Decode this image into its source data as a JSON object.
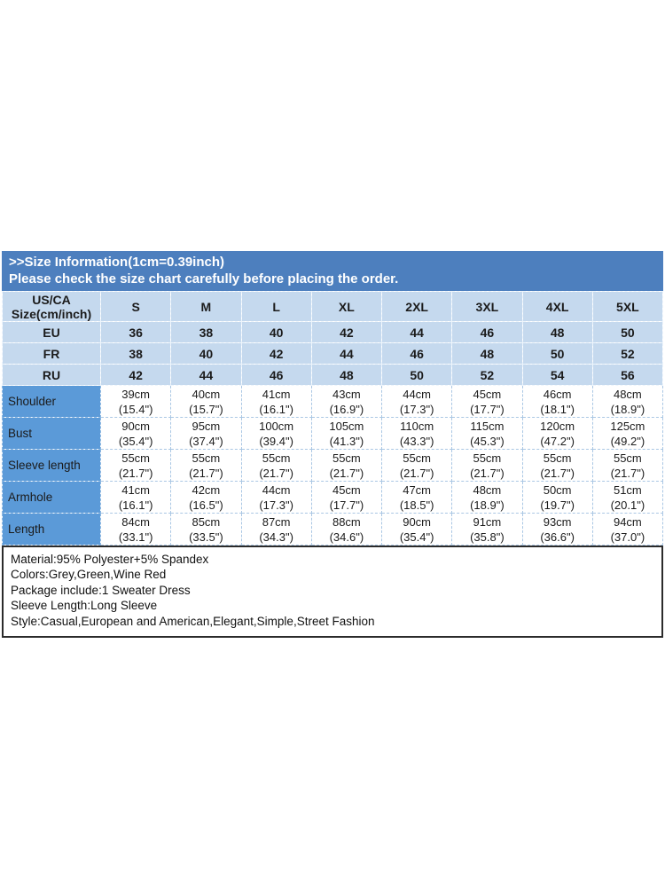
{
  "banner": {
    "line1": ">>Size Information(1cm=0.39inch)",
    "line2": "Please check the size chart carefully before placing the order."
  },
  "table": {
    "corner_header_line1": "US/CA",
    "corner_header_line2": "Size(cm/inch)",
    "size_columns": [
      "S",
      "M",
      "L",
      "XL",
      "2XL",
      "3XL",
      "4XL",
      "5XL"
    ],
    "size_rows": [
      {
        "label": "EU",
        "values": [
          "36",
          "38",
          "40",
          "42",
          "44",
          "46",
          "48",
          "50"
        ]
      },
      {
        "label": "FR",
        "values": [
          "38",
          "40",
          "42",
          "44",
          "46",
          "48",
          "50",
          "52"
        ]
      },
      {
        "label": "RU",
        "values": [
          "42",
          "44",
          "46",
          "48",
          "50",
          "52",
          "54",
          "56"
        ]
      }
    ],
    "measurement_rows": [
      {
        "label": "Shoulder",
        "values_cm": [
          "39cm",
          "40cm",
          "41cm",
          "43cm",
          "44cm",
          "45cm",
          "46cm",
          "48cm"
        ],
        "values_in": [
          "(15.4\")",
          "(15.7\")",
          "(16.1\")",
          "(16.9\")",
          "(17.3\")",
          "(17.7\")",
          "(18.1\")",
          "(18.9\")"
        ]
      },
      {
        "label": "Bust",
        "values_cm": [
          "90cm",
          "95cm",
          "100cm",
          "105cm",
          "110cm",
          "115cm",
          "120cm",
          "125cm"
        ],
        "values_in": [
          "(35.4\")",
          "(37.4\")",
          "(39.4\")",
          "(41.3\")",
          "(43.3\")",
          "(45.3\")",
          "(47.2\")",
          "(49.2\")"
        ]
      },
      {
        "label": "Sleeve length",
        "values_cm": [
          "55cm",
          "55cm",
          "55cm",
          "55cm",
          "55cm",
          "55cm",
          "55cm",
          "55cm"
        ],
        "values_in": [
          "(21.7\")",
          "(21.7\")",
          "(21.7\")",
          "(21.7\")",
          "(21.7\")",
          "(21.7\")",
          "(21.7\")",
          "(21.7\")"
        ]
      },
      {
        "label": "Armhole",
        "values_cm": [
          "41cm",
          "42cm",
          "44cm",
          "45cm",
          "47cm",
          "48cm",
          "50cm",
          "51cm"
        ],
        "values_in": [
          "(16.1\")",
          "(16.5\")",
          "(17.3\")",
          "(17.7\")",
          "(18.5\")",
          "(18.9\")",
          "(19.7\")",
          "(20.1\")"
        ]
      },
      {
        "label": "Length",
        "values_cm": [
          "84cm",
          "85cm",
          "87cm",
          "88cm",
          "90cm",
          "91cm",
          "93cm",
          "94cm"
        ],
        "values_in": [
          "(33.1\")",
          "(33.5\")",
          "(34.3\")",
          "(34.6\")",
          "(35.4\")",
          "(35.8\")",
          "(36.6\")",
          "(37.0\")"
        ]
      }
    ]
  },
  "info": {
    "lines": [
      "Material:95% Polyester+5% Spandex",
      "Colors:Grey,Green,Wine Red",
      "Package include:1 Sweater Dress",
      "Sleeve Length:Long Sleeve",
      "Style:Casual,European and American,Elegant,Simple,Street Fashion"
    ]
  },
  "colors": {
    "banner_blue": "#4d7fbe",
    "light_blue": "#c5d9ee",
    "label_blue": "#5b9ad8",
    "text": "#1b1b1b",
    "info_border": "#2b2b2b"
  }
}
